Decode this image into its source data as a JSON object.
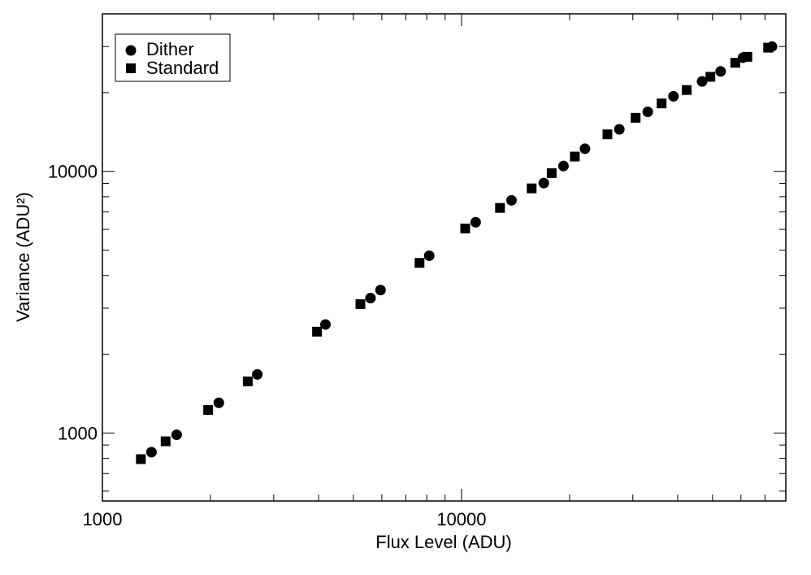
{
  "chart_data": {
    "type": "scatter",
    "x_scale": "log",
    "y_scale": "log",
    "xlim": [
      1000,
      80000
    ],
    "ylim": [
      550,
      40000
    ],
    "xlabel": "Flux Level (ADU)",
    "ylabel": "Variance (ADU²)",
    "x_ticks": [
      {
        "value": 1000,
        "label": "1000"
      },
      {
        "value": 10000,
        "label": "10000"
      }
    ],
    "y_ticks": [
      {
        "value": 1000,
        "label": "1000"
      },
      {
        "value": 10000,
        "label": "10000"
      }
    ],
    "grid": false,
    "legend_position": "top-left",
    "series": [
      {
        "name": "Dither",
        "marker": "circle",
        "points": [
          {
            "x": 1370,
            "y": 845
          },
          {
            "x": 1610,
            "y": 985
          },
          {
            "x": 2110,
            "y": 1305
          },
          {
            "x": 2700,
            "y": 1675
          },
          {
            "x": 4180,
            "y": 2600
          },
          {
            "x": 5580,
            "y": 3280
          },
          {
            "x": 5950,
            "y": 3520
          },
          {
            "x": 8130,
            "y": 4760
          },
          {
            "x": 10950,
            "y": 6390
          },
          {
            "x": 13780,
            "y": 7750
          },
          {
            "x": 16950,
            "y": 9020
          },
          {
            "x": 19230,
            "y": 10480
          },
          {
            "x": 22070,
            "y": 12200
          },
          {
            "x": 27510,
            "y": 14480
          },
          {
            "x": 33010,
            "y": 16890
          },
          {
            "x": 38930,
            "y": 19360
          },
          {
            "x": 46770,
            "y": 22060
          },
          {
            "x": 52670,
            "y": 24100
          },
          {
            "x": 60800,
            "y": 27200
          },
          {
            "x": 73200,
            "y": 30000
          }
        ]
      },
      {
        "name": "Standard",
        "marker": "square",
        "points": [
          {
            "x": 1280,
            "y": 795
          },
          {
            "x": 1500,
            "y": 930
          },
          {
            "x": 1970,
            "y": 1225
          },
          {
            "x": 2540,
            "y": 1575
          },
          {
            "x": 3960,
            "y": 2440
          },
          {
            "x": 5230,
            "y": 3110
          },
          {
            "x": 7640,
            "y": 4470
          },
          {
            "x": 10240,
            "y": 6050
          },
          {
            "x": 12800,
            "y": 7250
          },
          {
            "x": 15680,
            "y": 8610
          },
          {
            "x": 17830,
            "y": 9850
          },
          {
            "x": 20680,
            "y": 11390
          },
          {
            "x": 25490,
            "y": 13850
          },
          {
            "x": 30540,
            "y": 16020
          },
          {
            "x": 36070,
            "y": 18180
          },
          {
            "x": 42360,
            "y": 20460
          },
          {
            "x": 49320,
            "y": 22980
          },
          {
            "x": 57860,
            "y": 26000
          },
          {
            "x": 62500,
            "y": 27400
          },
          {
            "x": 71430,
            "y": 29700
          }
        ]
      }
    ]
  }
}
